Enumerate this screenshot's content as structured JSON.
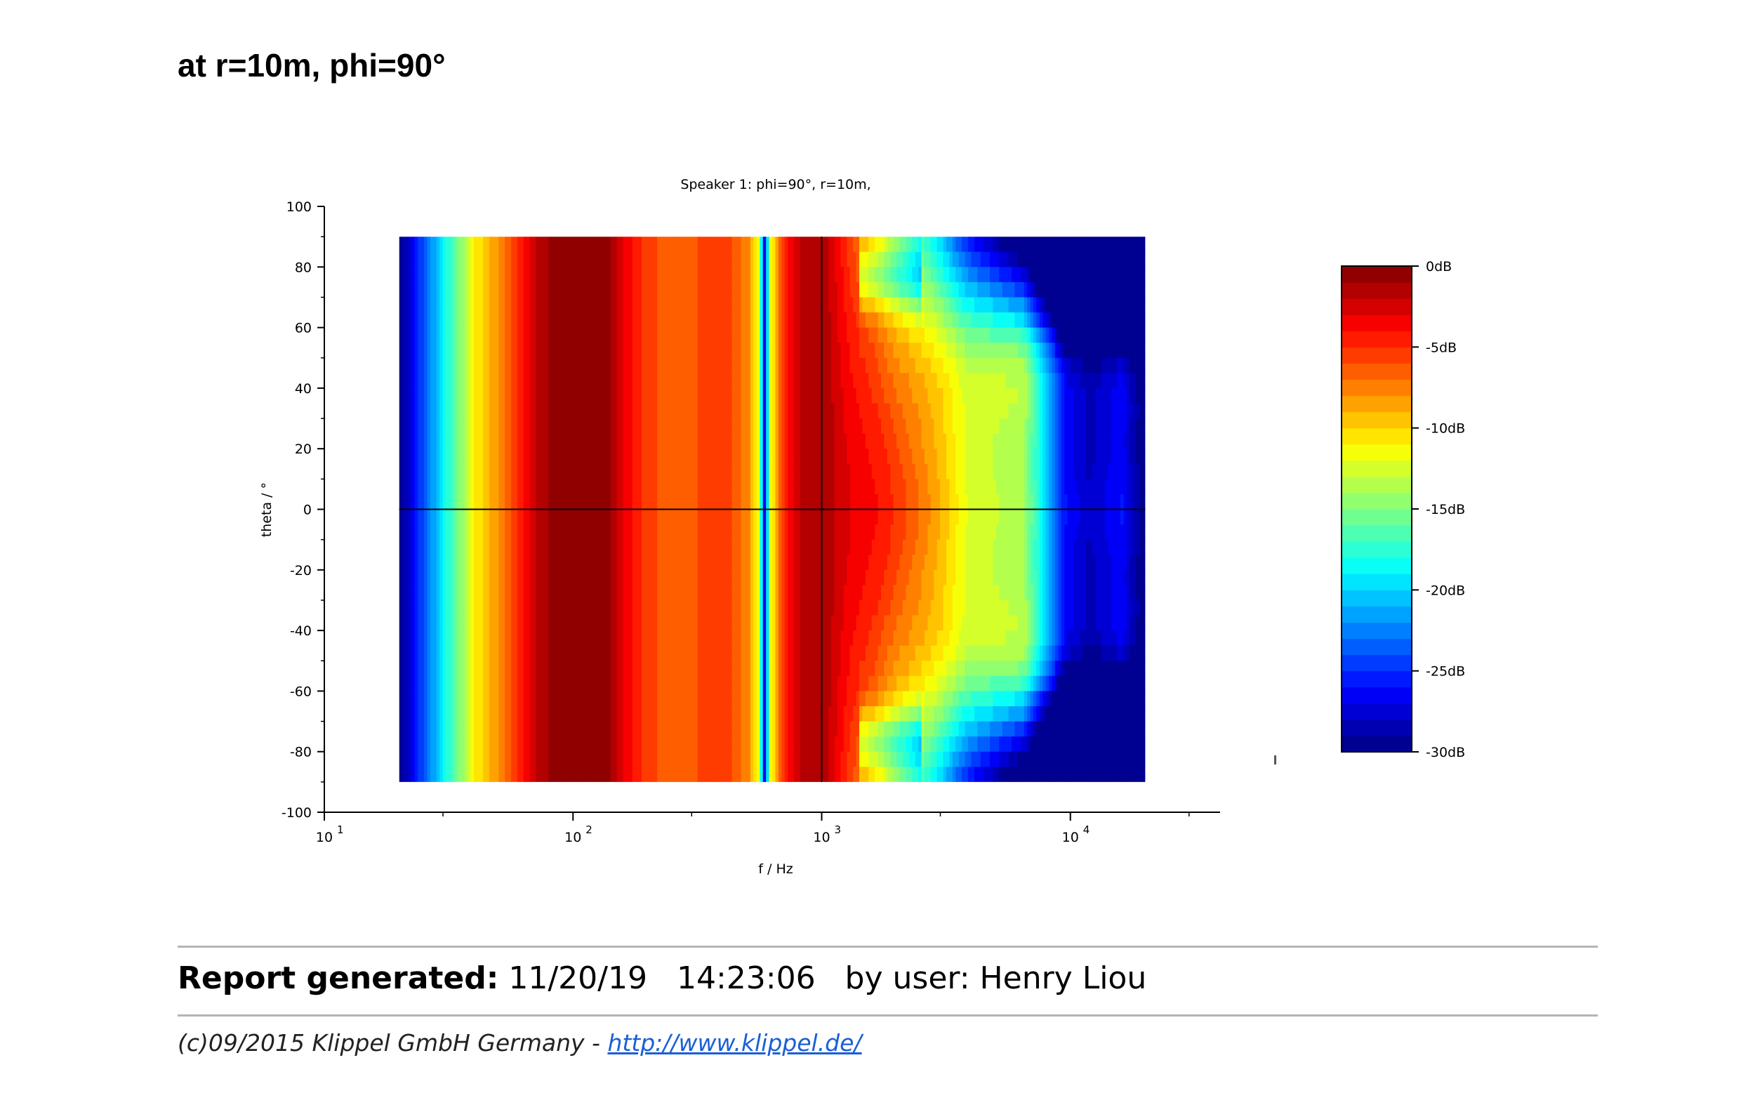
{
  "page": {
    "heading": "at r=10m, phi=90°"
  },
  "chart_data": {
    "type": "heatmap",
    "title": "Speaker 1: phi=90°, r=10m,",
    "xlabel": "f / Hz",
    "ylabel": "theta / °",
    "x_scale": "log",
    "xlim": [
      10,
      40000
    ],
    "ylim": [
      -100,
      100
    ],
    "x_ticks": [
      {
        "value": 10,
        "base": "10",
        "exp": "1"
      },
      {
        "value": 100,
        "base": "10",
        "exp": "2"
      },
      {
        "value": 1000,
        "base": "10",
        "exp": "3"
      },
      {
        "value": 10000,
        "base": "10",
        "exp": "4"
      }
    ],
    "y_ticks": [
      {
        "value": 100,
        "label": "100"
      },
      {
        "value": 80,
        "label": "80"
      },
      {
        "value": 60,
        "label": "60"
      },
      {
        "value": 40,
        "label": "40"
      },
      {
        "value": 20,
        "label": "20"
      },
      {
        "value": 0,
        "label": "0"
      },
      {
        "value": -20,
        "label": "-20"
      },
      {
        "value": -40,
        "label": "-40"
      },
      {
        "value": -60,
        "label": "-60"
      },
      {
        "value": -80,
        "label": "-80"
      },
      {
        "value": -100,
        "label": "-100"
      }
    ],
    "data_extent": {
      "f_min": 20,
      "f_max": 20000,
      "theta_min": -90,
      "theta_max": 90
    },
    "crosshair": {
      "f": 1000,
      "theta": 0
    },
    "colorbar": {
      "min_db": -30,
      "max_db": 0,
      "levels": 30,
      "ticks": [
        {
          "value": 0,
          "label": "0dB"
        },
        {
          "value": -5,
          "label": "-5dB"
        },
        {
          "value": -10,
          "label": "-10dB"
        },
        {
          "value": -15,
          "label": "-15dB"
        },
        {
          "value": -20,
          "label": "-20dB"
        },
        {
          "value": -25,
          "label": "-25dB"
        },
        {
          "value": -30,
          "label": "-30dB"
        }
      ]
    },
    "on_axis_level_db": [
      {
        "f": 20,
        "db": -30
      },
      {
        "f": 25,
        "db": -24
      },
      {
        "f": 30,
        "db": -19
      },
      {
        "f": 35,
        "db": -15
      },
      {
        "f": 40,
        "db": -11
      },
      {
        "f": 50,
        "db": -8
      },
      {
        "f": 60,
        "db": -5
      },
      {
        "f": 70,
        "db": -2
      },
      {
        "f": 85,
        "db": -0.5
      },
      {
        "f": 110,
        "db": 0
      },
      {
        "f": 140,
        "db": -1
      },
      {
        "f": 160,
        "db": -3
      },
      {
        "f": 190,
        "db": -5
      },
      {
        "f": 250,
        "db": -7
      },
      {
        "f": 320,
        "db": -6
      },
      {
        "f": 420,
        "db": -5.5
      },
      {
        "f": 510,
        "db": -8
      },
      {
        "f": 560,
        "db": -12
      },
      {
        "f": 590,
        "db": -27
      },
      {
        "f": 620,
        "db": -12
      },
      {
        "f": 700,
        "db": -5
      },
      {
        "f": 850,
        "db": -1.5
      },
      {
        "f": 1000,
        "db": -1
      },
      {
        "f": 1300,
        "db": -3
      },
      {
        "f": 1700,
        "db": -4
      },
      {
        "f": 2200,
        "db": -6
      },
      {
        "f": 3000,
        "db": -9
      },
      {
        "f": 3800,
        "db": -12
      },
      {
        "f": 5000,
        "db": -13
      },
      {
        "f": 6500,
        "db": -14
      },
      {
        "f": 8000,
        "db": -20
      },
      {
        "f": 9500,
        "db": -26
      },
      {
        "f": 12000,
        "db": -28
      },
      {
        "f": 16000,
        "db": -26
      },
      {
        "f": 20000,
        "db": -30
      }
    ]
  },
  "report": {
    "label": "Report generated:",
    "date": "11/20/19",
    "time": "14:23:06",
    "user_label": "by user:",
    "user": "Henry Liou"
  },
  "footer": {
    "copyright": "(c)09/2015 Klippel GmbH Germany -",
    "link_text": "http://www.klippel.de/"
  }
}
